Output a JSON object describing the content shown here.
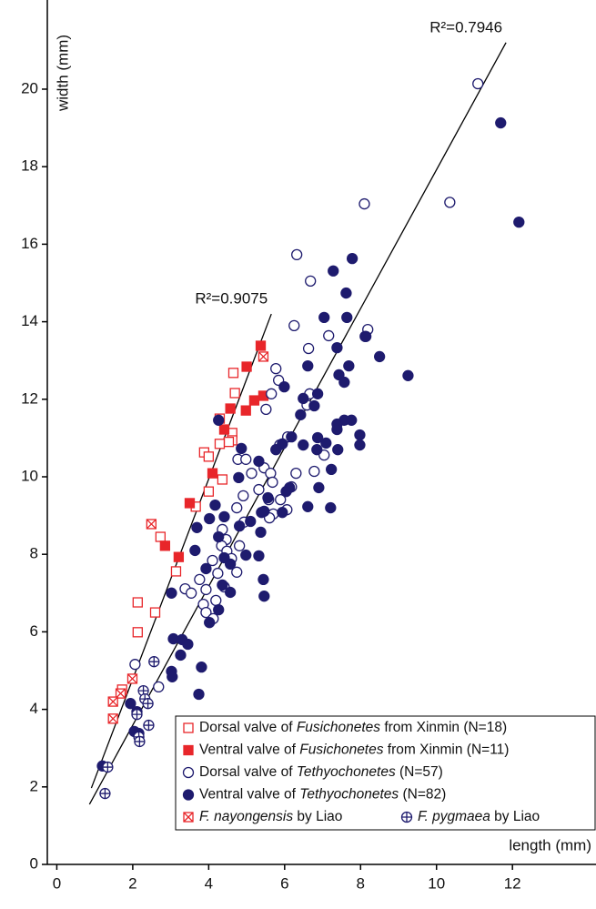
{
  "chart_data": {
    "type": "scatter",
    "x_label": "length (mm)",
    "y_label": "width (mm)",
    "xlim": [
      -0.25,
      14.2
    ],
    "ylim": [
      0,
      22.3
    ],
    "xticks": [
      0,
      2,
      4,
      6,
      8,
      10,
      12
    ],
    "yticks": [
      0,
      2,
      4,
      6,
      8,
      10,
      12,
      14,
      16,
      18,
      20
    ],
    "legend": "lower right",
    "series": [
      {
        "name": "Dorsal valve of Fusichonetes from Xinmin (N=18)",
        "italic": "Fusichonetes",
        "color": "#e8262a",
        "marker": "square-open",
        "x": [
          4.65,
          4.69,
          4.29,
          4.62,
          4.62,
          4.53,
          4.29,
          3.88,
          4.0,
          4.36,
          4.0,
          3.66,
          2.73,
          3.14,
          2.59,
          2.13,
          2.13,
          1.72
        ],
        "y": [
          12.68,
          12.16,
          11.5,
          11.13,
          10.94,
          10.9,
          10.85,
          10.63,
          10.52,
          9.93,
          9.62,
          9.23,
          8.45,
          7.56,
          6.5,
          6.76,
          5.99,
          4.51
        ]
      },
      {
        "name": "Ventral valve of Fusichonetes from Xinmin (N=11)",
        "italic": "Fusichonetes",
        "color": "#e8262a",
        "marker": "square",
        "x": [
          5.37,
          5.0,
          5.44,
          5.2,
          4.98,
          4.57,
          4.41,
          4.1,
          3.5,
          3.21,
          2.85
        ],
        "y": [
          13.38,
          12.84,
          12.09,
          11.97,
          11.71,
          11.76,
          11.22,
          10.09,
          9.32,
          7.93,
          8.22
        ]
      },
      {
        "name": "Dorsal valve of Tethyochonetes (N=57)",
        "italic": "Tethyochonetes",
        "color": "#1e1b6e",
        "marker": "circle-open",
        "x": [
          11.09,
          8.1,
          10.35,
          6.32,
          6.68,
          6.25,
          6.63,
          7.16,
          8.19,
          8.14,
          5.77,
          5.84,
          5.65,
          6.66,
          6.59,
          5.51,
          6.08,
          5.87,
          4.77,
          5.46,
          5.13,
          5.63,
          6.78,
          6.3,
          7.04,
          5.68,
          4.98,
          5.32,
          4.91,
          5.89,
          5.58,
          4.74,
          4.93,
          4.36,
          4.46,
          4.34,
          4.48,
          4.81,
          4.1,
          4.6,
          4.24,
          3.76,
          3.38,
          3.93,
          3.54,
          3.86,
          4.19,
          3.93,
          2.06,
          2.68,
          5.7,
          5.6,
          6.06,
          6.18,
          4.74,
          4.41,
          4.12
        ],
        "y": [
          20.14,
          17.04,
          17.08,
          15.73,
          15.05,
          13.9,
          13.31,
          13.64,
          13.8,
          13.62,
          12.79,
          12.49,
          12.14,
          12.14,
          11.85,
          11.74,
          11.03,
          10.82,
          10.45,
          10.23,
          10.09,
          10.09,
          10.14,
          10.09,
          10.56,
          9.86,
          10.45,
          9.67,
          9.51,
          9.41,
          9.41,
          9.2,
          8.83,
          8.64,
          8.38,
          8.22,
          8.08,
          8.22,
          7.84,
          7.89,
          7.51,
          7.35,
          7.11,
          7.09,
          7.0,
          6.71,
          6.81,
          6.5,
          5.16,
          4.58,
          9.04,
          8.94,
          9.15,
          9.74,
          7.54,
          7.16,
          6.34
        ]
      },
      {
        "name": "Ventral valve of Tethyochonetes (N=82)",
        "italic": "Tethyochonetes",
        "color": "#1e1b6e",
        "marker": "circle",
        "x": [
          11.69,
          12.17,
          7.78,
          7.28,
          7.62,
          7.04,
          8.12,
          7.64,
          7.38,
          8.5,
          9.25,
          6.61,
          7.69,
          7.43,
          7.57,
          5.99,
          6.87,
          6.49,
          6.78,
          7.57,
          7.38,
          7.76,
          7.98,
          7.38,
          6.87,
          7.09,
          7.4,
          7.98,
          6.85,
          6.49,
          5.94,
          5.77,
          5.32,
          4.86,
          4.26,
          4.79,
          5.56,
          6.13,
          6.61,
          6.9,
          7.23,
          7.21,
          5.94,
          5.39,
          5.1,
          5.37,
          4.41,
          4.17,
          4.26,
          4.02,
          3.69,
          4.81,
          5.46,
          4.98,
          5.32,
          4.57,
          4.41,
          3.93,
          3.64,
          4.57,
          5.44,
          5.46,
          4.36,
          3.02,
          4.02,
          4.26,
          3.07,
          3.3,
          3.45,
          3.26,
          3.02,
          3.04,
          3.81,
          3.74,
          1.94,
          2.11,
          2.04,
          2.16,
          1.2,
          6.18,
          6.42,
          6.04
        ],
        "y": [
          19.13,
          16.57,
          15.63,
          15.31,
          14.74,
          14.11,
          13.62,
          14.11,
          13.33,
          13.1,
          12.61,
          12.86,
          12.86,
          12.63,
          12.44,
          12.32,
          12.14,
          12.02,
          11.83,
          11.46,
          11.36,
          11.46,
          11.08,
          11.22,
          11.01,
          10.87,
          10.7,
          10.82,
          10.7,
          10.82,
          10.85,
          10.7,
          10.4,
          10.73,
          11.46,
          9.98,
          9.46,
          9.72,
          9.23,
          9.72,
          10.19,
          9.2,
          9.08,
          9.08,
          8.85,
          8.57,
          8.97,
          9.27,
          8.45,
          8.92,
          8.69,
          8.73,
          9.11,
          7.98,
          7.96,
          7.75,
          7.91,
          7.63,
          8.1,
          7.02,
          7.35,
          6.92,
          7.21,
          7.0,
          6.24,
          6.57,
          5.82,
          5.8,
          5.68,
          5.4,
          4.98,
          4.84,
          5.09,
          4.39,
          4.15,
          3.94,
          3.43,
          3.38,
          2.54,
          11.03,
          11.6,
          9.62
        ]
      },
      {
        "name": "F. nayongensis by Liao",
        "italic": "F. nayongensis",
        "color": "#e8262a",
        "marker": "square-x",
        "x": [
          2.49,
          5.44,
          1.68,
          1.99,
          1.48,
          1.48
        ],
        "y": [
          8.78,
          13.1,
          4.41,
          4.79,
          3.76,
          4.2
        ]
      },
      {
        "name": "F. pygmaea by Liao",
        "italic": "F. pygmaea",
        "color": "#1e1b6e",
        "marker": "circle-plus",
        "x": [
          1.27,
          1.34,
          2.56,
          2.28,
          2.32,
          2.4,
          2.42,
          2.16,
          2.18,
          2.11
        ],
        "y": [
          1.83,
          2.51,
          5.23,
          4.48,
          4.27,
          4.15,
          3.59,
          3.29,
          3.17,
          3.87
        ]
      }
    ],
    "lines": [
      {
        "x": [
          0.86,
          11.83
        ],
        "y": [
          1.55,
          21.2
        ],
        "label": "R²=0.7946"
      },
      {
        "x": [
          0.91,
          5.65
        ],
        "y": [
          1.97,
          14.2
        ],
        "label": "R²=0.9075"
      }
    ]
  }
}
